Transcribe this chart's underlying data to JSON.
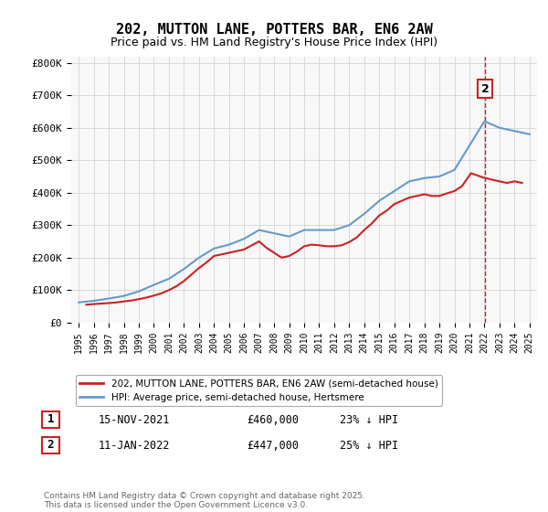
{
  "title": "202, MUTTON LANE, POTTERS BAR, EN6 2AW",
  "subtitle": "Price paid vs. HM Land Registry's House Price Index (HPI)",
  "hpi_years": [
    1995,
    1996,
    1997,
    1998,
    1999,
    2000,
    2001,
    2002,
    2003,
    2004,
    2005,
    2006,
    2007,
    2008,
    2009,
    2010,
    2011,
    2012,
    2013,
    2014,
    2015,
    2016,
    2017,
    2018,
    2019,
    2020,
    2021,
    2022,
    2023,
    2024,
    2025
  ],
  "hpi_values": [
    62000,
    67000,
    74000,
    82000,
    96000,
    116000,
    135000,
    165000,
    200000,
    228000,
    240000,
    258000,
    285000,
    275000,
    265000,
    285000,
    285000,
    285000,
    300000,
    335000,
    375000,
    405000,
    435000,
    445000,
    450000,
    470000,
    545000,
    620000,
    600000,
    590000,
    580000
  ],
  "sale_years": [
    1995.5,
    1996,
    1997,
    1997.5,
    1998,
    1998.5,
    1999,
    1999.5,
    2000,
    2000.5,
    2001,
    2001.5,
    2002,
    2002.5,
    2003,
    2003.5,
    2004,
    2005,
    2006,
    2007,
    2007.5,
    2008,
    2008.5,
    2009,
    2009.5,
    2010,
    2010.5,
    2011,
    2011.5,
    2012,
    2012.5,
    2013,
    2013.5,
    2014,
    2014.5,
    2015,
    2015.5,
    2016,
    2016.5,
    2017,
    2017.5,
    2018,
    2018.5,
    2019,
    2019.5,
    2020,
    2020.5,
    2021.1,
    2021.9,
    2022.5,
    2023,
    2023.5,
    2024,
    2024.5
  ],
  "sale_values": [
    55000,
    57000,
    60000,
    62000,
    65000,
    68000,
    72000,
    77000,
    83000,
    90000,
    100000,
    112000,
    128000,
    148000,
    168000,
    185000,
    205000,
    215000,
    225000,
    250000,
    230000,
    215000,
    200000,
    205000,
    218000,
    235000,
    240000,
    238000,
    235000,
    235000,
    238000,
    248000,
    262000,
    285000,
    305000,
    330000,
    345000,
    365000,
    375000,
    385000,
    390000,
    395000,
    390000,
    390000,
    398000,
    405000,
    420000,
    460000,
    447000,
    440000,
    435000,
    430000,
    435000,
    430000
  ],
  "marker1_x": 2021.88,
  "marker1_y": 460000,
  "marker1_label": "1",
  "marker1_date": "15-NOV-2021",
  "marker1_price": "£460,000",
  "marker1_hpi": "23% ↓ HPI",
  "marker2_x": 2022.03,
  "marker2_y": 447000,
  "marker2_label": "2",
  "marker2_date": "11-JAN-2022",
  "marker2_price": "£447,000",
  "marker2_hpi": "25% ↓ HPI",
  "vline_x": 2022.03,
  "ylim": [
    0,
    820000
  ],
  "xlim_min": 1994.5,
  "xlim_max": 2025.5,
  "hpi_color": "#6699cc",
  "sale_color": "#cc2222",
  "vline_color": "#cc2222",
  "bg_color": "#f8f8f8",
  "legend_label1": "202, MUTTON LANE, POTTERS BAR, EN6 2AW (semi-detached house)",
  "legend_label2": "HPI: Average price, semi-detached house, Hertsmere",
  "footnote": "Contains HM Land Registry data © Crown copyright and database right 2025.\nThis data is licensed under the Open Government Licence v3.0.",
  "yticks": [
    0,
    100000,
    200000,
    300000,
    400000,
    500000,
    600000,
    700000,
    800000
  ],
  "ytick_labels": [
    "£0",
    "£100K",
    "£200K",
    "£300K",
    "£400K",
    "£500K",
    "£600K",
    "£700K",
    "£800K"
  ],
  "xticks": [
    1995,
    1996,
    1997,
    1998,
    1999,
    2000,
    2001,
    2002,
    2003,
    2004,
    2005,
    2006,
    2007,
    2008,
    2009,
    2010,
    2011,
    2012,
    2013,
    2014,
    2015,
    2016,
    2017,
    2018,
    2019,
    2020,
    2021,
    2022,
    2023,
    2024,
    2025
  ]
}
